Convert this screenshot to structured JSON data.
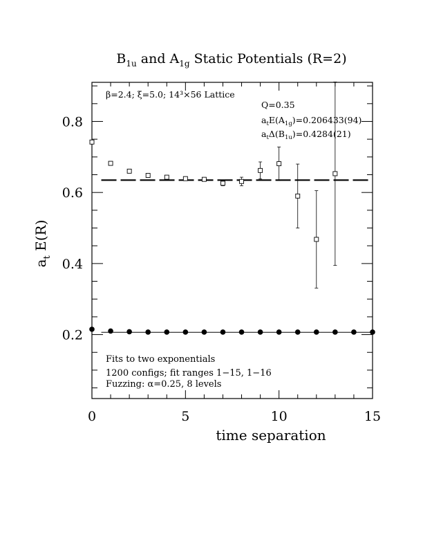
{
  "chart_data": {
    "type": "scatter",
    "title": "B1u and A1g Static Potentials (R=2)",
    "title_parts": {
      "b": "B",
      "b_sub": "1u",
      "mid": " and A",
      "a_sub": "1g",
      "tail": " Static Potentials (R=2)"
    },
    "xlabel": "time separation",
    "ylabel": {
      "main": "a",
      "sub": "t",
      "tail": " E(R)"
    },
    "xlim": [
      0,
      15
    ],
    "ylim": [
      0.02,
      0.91
    ],
    "x_ticks": [
      0,
      5,
      10,
      15
    ],
    "x_tick_labels": [
      "0",
      "5",
      "10",
      "15"
    ],
    "y_ticks": [
      0.2,
      0.4,
      0.6,
      0.8
    ],
    "y_tick_labels": [
      "0.2",
      "0.4",
      "0.6",
      "0.8"
    ],
    "grid": false,
    "annotations": {
      "lattice": "β=2.4; ξ=5.0; 14³×56 Lattice",
      "q": "Q=0.35",
      "ae_pre": "a",
      "ae_sub": "t",
      "ae_mid": "E(A",
      "ae_sub2": "1g",
      "ae_post": ")=0.206433(94)",
      "ad_pre": "a",
      "ad_sub": "t",
      "ad_mid": "Δ(B",
      "ad_sub2": "1u",
      "ad_post": ")=0.4284(21)",
      "fits1": "Fits to two exponentials",
      "fits2": "1200 configs; fit ranges 1−15, 1−16",
      "fits3": "Fuzzing: α=0.25, 8 levels"
    },
    "series": [
      {
        "marker": "open-square",
        "x": [
          0,
          1,
          2,
          3,
          4,
          5,
          6,
          7,
          8,
          9,
          10,
          11,
          12,
          13
        ],
        "y": [
          0.742,
          0.682,
          0.66,
          0.648,
          0.643,
          0.639,
          0.637,
          0.626,
          0.631,
          0.662,
          0.681,
          0.59,
          0.468,
          0.653
        ],
        "err": [
          0.004,
          0.004,
          0.004,
          0.004,
          0.004,
          0.004,
          0.005,
          0.007,
          0.012,
          0.024,
          0.047,
          0.09,
          0.137,
          0.258
        ]
      },
      {
        "marker": "filled-circle",
        "x": [
          0,
          1,
          2,
          3,
          4,
          5,
          6,
          7,
          8,
          9,
          10,
          11,
          12,
          13,
          14,
          15
        ],
        "y": [
          0.215,
          0.21,
          0.208,
          0.207,
          0.207,
          0.207,
          0.207,
          0.207,
          0.207,
          0.207,
          0.207,
          0.207,
          0.207,
          0.207,
          0.207,
          0.207
        ],
        "err": [
          0,
          0,
          0,
          0,
          0,
          0,
          0,
          0,
          0,
          0,
          0,
          0,
          0,
          0,
          0,
          0
        ]
      }
    ],
    "fit_lines": [
      {
        "style": "dashed",
        "y": 0.6348,
        "x_range": [
          0.5,
          15
        ]
      },
      {
        "style": "solid",
        "y": 0.2064,
        "x_range": [
          0.5,
          15
        ]
      }
    ]
  }
}
